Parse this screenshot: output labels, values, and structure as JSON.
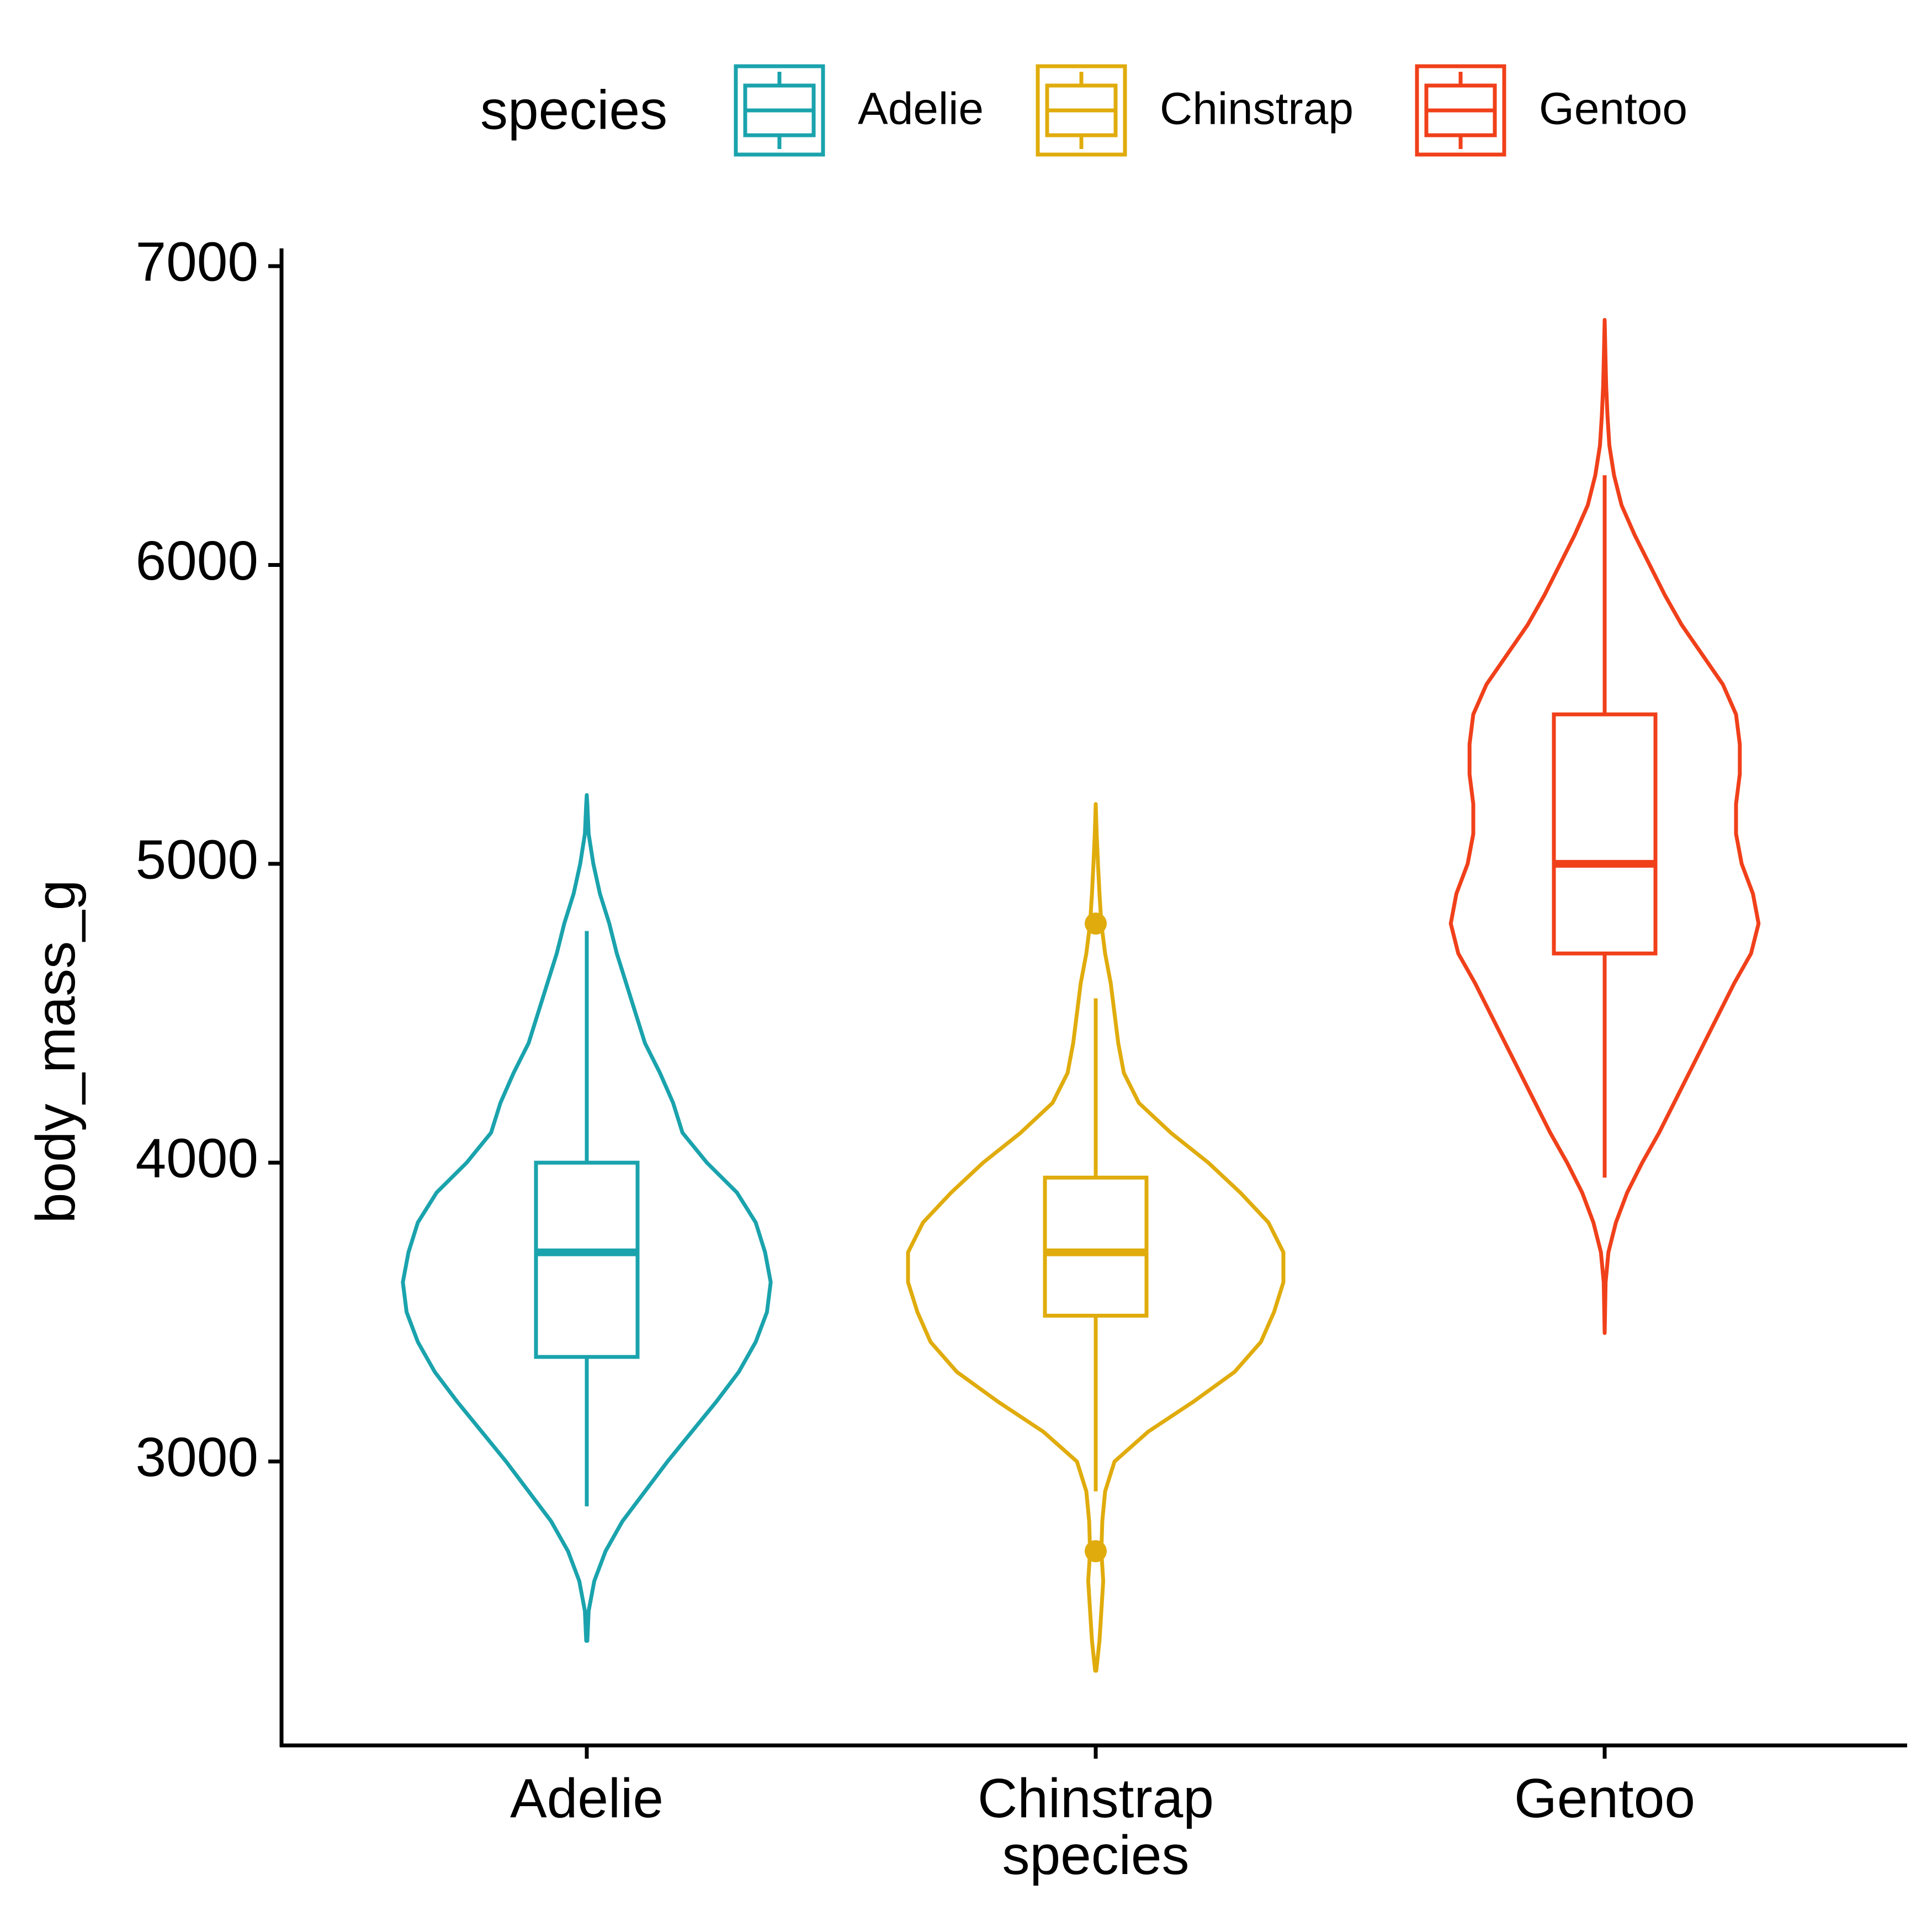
{
  "chart_data": {
    "type": "violin",
    "xlabel": "species",
    "ylabel": "body_mass_g",
    "categories": [
      "Adelie",
      "Chinstrap",
      "Gentoo"
    ],
    "yticks": [
      3000,
      4000,
      5000,
      6000,
      7000
    ],
    "ylim": [
      2050,
      7050
    ],
    "grid": false,
    "legend": {
      "title": "species",
      "position": "top",
      "entries": [
        "Adelie",
        "Chinstrap",
        "Gentoo"
      ]
    },
    "series": [
      {
        "name": "Adelie",
        "color": "#1aa3ad",
        "box": {
          "min": 2850,
          "q1": 3350,
          "median": 3700,
          "q3": 4000,
          "max": 4775
        },
        "outliers": [],
        "violin": {
          "y": [
            2400,
            2500,
            2600,
            2700,
            2800,
            3000,
            3100,
            3200,
            3300,
            3400,
            3500,
            3600,
            3700,
            3800,
            3900,
            4000,
            4100,
            4200,
            4300,
            4400,
            4500,
            4600,
            4700,
            4800,
            4900,
            5000,
            5100,
            5200,
            5230
          ],
          "density": [
            0.003,
            0.01,
            0.04,
            0.1,
            0.19,
            0.43,
            0.56,
            0.69,
            0.81,
            0.9,
            0.96,
            0.98,
            0.95,
            0.9,
            0.8,
            0.64,
            0.51,
            0.46,
            0.39,
            0.31,
            0.26,
            0.21,
            0.16,
            0.12,
            0.07,
            0.035,
            0.01,
            0.003,
            0.0
          ]
        }
      },
      {
        "name": "Chinstrap",
        "color": "#e0ac0d",
        "box": {
          "min": 2900,
          "q1": 3488,
          "median": 3700,
          "q3": 3950,
          "max": 4550
        },
        "outliers": [
          2700,
          4800
        ],
        "violin": {
          "y": [
            2300,
            2400,
            2500,
            2600,
            2700,
            2800,
            2900,
            3000,
            3100,
            3200,
            3300,
            3400,
            3500,
            3600,
            3700,
            3800,
            3900,
            4000,
            4100,
            4200,
            4300,
            4400,
            4500,
            4600,
            4700,
            4800,
            4900,
            5000,
            5100,
            5200
          ],
          "density": [
            0.003,
            0.02,
            0.03,
            0.04,
            0.03,
            0.035,
            0.05,
            0.1,
            0.28,
            0.52,
            0.74,
            0.88,
            0.95,
            1.0,
            1.0,
            0.92,
            0.77,
            0.6,
            0.4,
            0.23,
            0.15,
            0.12,
            0.1,
            0.08,
            0.05,
            0.03,
            0.02,
            0.012,
            0.005,
            0.0
          ]
        }
      },
      {
        "name": "Gentoo",
        "color": "#f0401a",
        "box": {
          "min": 3950,
          "q1": 4700,
          "median": 5000,
          "q3": 5500,
          "max": 6300
        },
        "outliers": [],
        "violin": {
          "y": [
            3430,
            3600,
            3700,
            3800,
            3900,
            4000,
            4100,
            4200,
            4300,
            4400,
            4500,
            4600,
            4700,
            4800,
            4900,
            5000,
            5100,
            5200,
            5300,
            5400,
            5500,
            5600,
            5700,
            5800,
            5900,
            6000,
            6100,
            6200,
            6300,
            6400,
            6500,
            6600,
            6700,
            6820
          ],
          "density": [
            0.0,
            0.005,
            0.02,
            0.06,
            0.12,
            0.2,
            0.29,
            0.37,
            0.45,
            0.53,
            0.61,
            0.69,
            0.78,
            0.82,
            0.79,
            0.73,
            0.7,
            0.7,
            0.72,
            0.72,
            0.7,
            0.63,
            0.52,
            0.41,
            0.32,
            0.24,
            0.16,
            0.09,
            0.05,
            0.025,
            0.015,
            0.008,
            0.004,
            0.0
          ]
        }
      }
    ]
  }
}
